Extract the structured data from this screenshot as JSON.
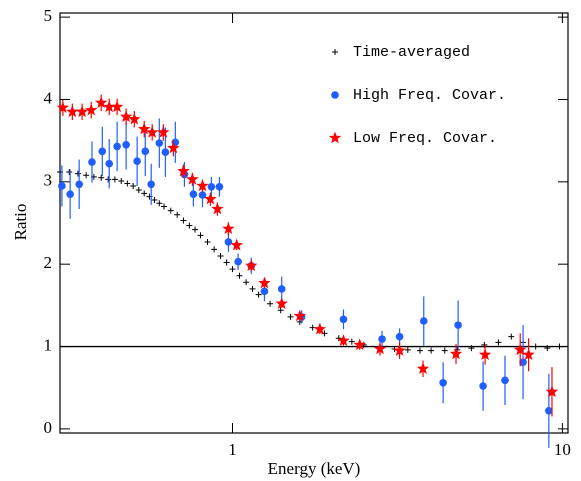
{
  "chart_data": {
    "type": "scatter",
    "xlabel": "Energy (keV)",
    "ylabel": "Ratio",
    "xscale": "log",
    "xlim": [
      0.3,
      10.4
    ],
    "ylim": [
      -0.05,
      5.05
    ],
    "xticks": [
      1,
      10
    ],
    "yticks": [
      0,
      1,
      2,
      3,
      4,
      5
    ],
    "hline": 1,
    "legend": "upper right",
    "series": [
      {
        "name": "Time-averaged",
        "color": "#000000",
        "marker": "plus",
        "x": [
          0.3,
          0.32,
          0.34,
          0.36,
          0.38,
          0.4,
          0.42,
          0.44,
          0.46,
          0.48,
          0.5,
          0.52,
          0.54,
          0.56,
          0.58,
          0.6,
          0.62,
          0.65,
          0.68,
          0.71,
          0.74,
          0.77,
          0.8,
          0.84,
          0.88,
          0.92,
          0.96,
          1.0,
          1.05,
          1.1,
          1.15,
          1.2,
          1.3,
          1.4,
          1.5,
          1.6,
          1.75,
          1.9,
          2.1,
          2.3,
          2.5,
          2.8,
          3.1,
          3.4,
          3.7,
          4.0,
          4.4,
          4.8,
          5.3,
          5.8,
          6.4,
          7.0,
          7.6,
          8.3,
          9.0,
          9.8
        ],
        "values": [
          3.12,
          3.12,
          3.1,
          3.08,
          3.06,
          3.05,
          3.03,
          3.03,
          3.01,
          2.98,
          2.95,
          2.9,
          2.86,
          2.82,
          2.78,
          2.74,
          2.7,
          2.65,
          2.6,
          2.53,
          2.47,
          2.42,
          2.35,
          2.27,
          2.18,
          2.1,
          2.02,
          1.94,
          1.86,
          1.78,
          1.7,
          1.63,
          1.52,
          1.44,
          1.36,
          1.3,
          1.23,
          1.16,
          1.1,
          1.06,
          1.02,
          0.99,
          0.97,
          0.96,
          0.95,
          0.95,
          0.95,
          0.96,
          0.98,
          1.02,
          1.05,
          1.12,
          1.05,
          1.0,
          0.98,
          1.0
        ]
      },
      {
        "name": "High Freq. Covar.",
        "color": "#1f5eff",
        "marker": "circle",
        "x": [
          0.304,
          0.322,
          0.343,
          0.375,
          0.403,
          0.423,
          0.447,
          0.476,
          0.514,
          0.544,
          0.567,
          0.6,
          0.626,
          0.671,
          0.715,
          0.761,
          0.811,
          0.863,
          0.913,
          0.972,
          1.04,
          1.14,
          1.25,
          1.41,
          1.62,
          2.17,
          2.84,
          3.21,
          3.8,
          4.35,
          4.83,
          5.75,
          6.7,
          7.6,
          9.1
        ],
        "values": [
          2.95,
          2.85,
          2.97,
          3.24,
          3.37,
          3.22,
          3.43,
          3.45,
          3.25,
          3.37,
          2.97,
          3.47,
          3.36,
          3.48,
          3.09,
          2.85,
          2.84,
          2.94,
          2.94,
          2.27,
          2.03,
          1.98,
          1.67,
          1.7,
          1.36,
          1.33,
          1.09,
          1.12,
          1.31,
          0.56,
          1.26,
          0.52,
          0.59,
          0.81,
          0.22
        ],
        "errors": [
          0.25,
          0.3,
          0.3,
          0.25,
          0.3,
          0.3,
          0.3,
          0.3,
          0.3,
          0.3,
          0.25,
          0.3,
          0.3,
          0.25,
          0.15,
          0.15,
          0.15,
          0.12,
          0.12,
          0.12,
          0.1,
          0.1,
          0.12,
          0.15,
          0.08,
          0.12,
          0.1,
          0.1,
          0.3,
          0.25,
          0.3,
          0.3,
          0.3,
          0.45,
          0.45
        ]
      },
      {
        "name": "Low Freq. Covar.",
        "color": "#ff0000",
        "marker": "star",
        "x": [
          0.306,
          0.327,
          0.35,
          0.373,
          0.4,
          0.423,
          0.447,
          0.476,
          0.504,
          0.54,
          0.571,
          0.617,
          0.662,
          0.71,
          0.756,
          0.811,
          0.857,
          0.9,
          0.972,
          1.03,
          1.14,
          1.25,
          1.41,
          1.6,
          1.84,
          2.17,
          2.43,
          2.8,
          3.21,
          3.78,
          4.76,
          5.83,
          7.45,
          7.9,
          9.3
        ],
        "values": [
          3.9,
          3.85,
          3.85,
          3.87,
          3.96,
          3.91,
          3.91,
          3.79,
          3.76,
          3.64,
          3.6,
          3.6,
          3.41,
          3.13,
          3.03,
          2.95,
          2.79,
          2.67,
          2.43,
          2.23,
          1.98,
          1.77,
          1.52,
          1.37,
          1.21,
          1.07,
          1.02,
          0.97,
          0.95,
          0.73,
          0.91,
          0.9,
          0.96,
          0.9,
          0.45
        ],
        "errors": [
          0.1,
          0.1,
          0.1,
          0.1,
          0.1,
          0.1,
          0.1,
          0.1,
          0.1,
          0.1,
          0.1,
          0.1,
          0.1,
          0.08,
          0.08,
          0.08,
          0.08,
          0.08,
          0.08,
          0.06,
          0.06,
          0.06,
          0.05,
          0.05,
          0.06,
          0.06,
          0.06,
          0.08,
          0.1,
          0.1,
          0.12,
          0.12,
          0.2,
          0.2,
          0.3
        ]
      }
    ]
  }
}
